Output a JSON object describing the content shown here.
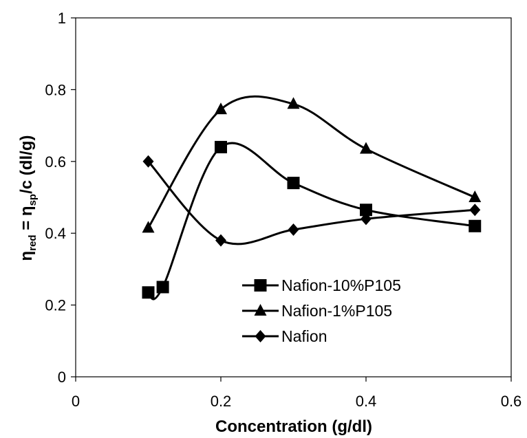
{
  "chart_data": {
    "type": "line",
    "xlabel": "Concentration (g/dl)",
    "ylabel": {
      "eta1": "η",
      "sub1": "red",
      "mid": " = η",
      "sub2": "sp",
      "tail": "/c (dl/g)"
    },
    "xlim": [
      0,
      0.6
    ],
    "ylim": [
      0,
      1
    ],
    "x_ticks": [
      0,
      0.2,
      0.4,
      0.6
    ],
    "x_tick_labels": [
      "0",
      "0.2",
      "0.4",
      "0.6"
    ],
    "y_ticks": [
      0,
      0.2,
      0.4,
      0.6,
      0.8,
      1
    ],
    "y_tick_labels": [
      "0",
      "0.2",
      "0.4",
      "0.6",
      "0.8",
      "1"
    ],
    "grid": false,
    "legend_position": "bottom-right",
    "smooth": true,
    "series": [
      {
        "name": "Nafion-10%P105",
        "marker": "square",
        "color": "#000000",
        "x": [
          0.1,
          0.12,
          0.2,
          0.3,
          0.4,
          0.55
        ],
        "y": [
          0.235,
          0.25,
          0.64,
          0.54,
          0.465,
          0.42
        ]
      },
      {
        "name": "Nafion-1%P105",
        "marker": "triangle",
        "color": "#000000",
        "x": [
          0.1,
          0.2,
          0.3,
          0.4,
          0.55
        ],
        "y": [
          0.415,
          0.745,
          0.76,
          0.635,
          0.5
        ]
      },
      {
        "name": "Nafion",
        "marker": "diamond",
        "color": "#000000",
        "x": [
          0.1,
          0.2,
          0.3,
          0.4,
          0.55
        ],
        "y": [
          0.6,
          0.38,
          0.41,
          0.44,
          0.465
        ]
      }
    ]
  }
}
